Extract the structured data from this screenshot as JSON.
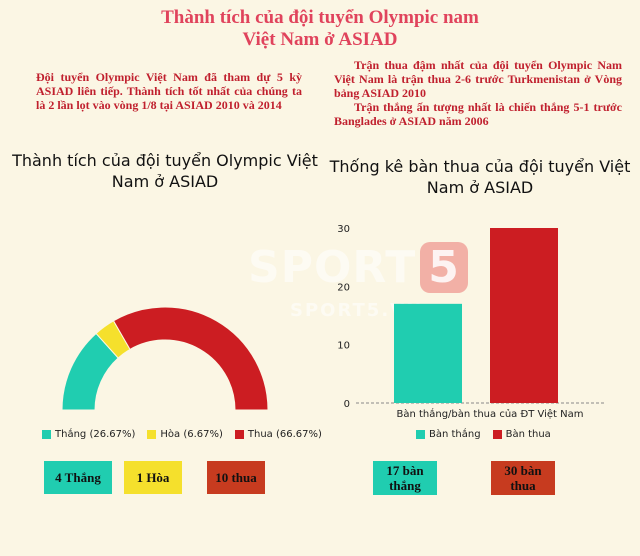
{
  "header": {
    "title_line1": "Thành tích của đội tuyển Olympic nam",
    "title_line2": "Việt Nam ở ASIAD"
  },
  "notes": {
    "left": "Đội tuyển Olympic Việt Nam đã tham dự 5 kỳ ASIAD liên tiếp. Thành tích tốt nhất của chúng ta là 2 lần lọt vào vòng 1/8 tại ASIAD 2010 và 2014",
    "right_p1": "Trận thua đậm nhất của đội tuyển Olympic Nam Việt Nam là trận thua 2-6 trước Turkmenistan ở Vòng bảng ASIAD 2010",
    "right_p2": "Trận thắng ấn tượng nhất là chiến thắng 5-1 trước Banglades ở ASIAD năm 2006"
  },
  "colors": {
    "win": "#20cdb0",
    "draw": "#f5e02c",
    "loss": "#cc1d22",
    "box_loss": "#c73b1f",
    "title": "#e0435c"
  },
  "boxes": {
    "wins": "4 Thắng",
    "draws": "1 Hòa",
    "losses": "10 thua",
    "goals_for_l1": "17 bàn",
    "goals_for_l2": "thắng",
    "goals_against_l1": "30 bàn",
    "goals_against_l2": "thua"
  },
  "watermark": {
    "main": "SPORT",
    "num": "5",
    "sub": "SPORT5.VN"
  },
  "chart_data": [
    {
      "type": "pie",
      "variant": "half-donut",
      "title": "Thành tích của đội tuyển Olympic Việt Nam ở ASIAD",
      "slices": [
        {
          "label": "Thắng",
          "pct_label": "Thắng (26.67%)",
          "value": 26.67,
          "color": "#20cdb0"
        },
        {
          "label": "Hòa",
          "pct_label": "Hòa (6.67%)",
          "value": 6.67,
          "color": "#f5e02c"
        },
        {
          "label": "Thua",
          "pct_label": "Thua (66.67%)",
          "value": 66.67,
          "color": "#cc1d22"
        }
      ],
      "legend": "bottom"
    },
    {
      "type": "bar",
      "title": "Thống kê bàn thua của đội tuyển Việt Nam ở ASIAD",
      "xlabel": "Bàn thắng/bàn thua của ĐT Việt Nam",
      "categories": [
        "Bàn thắng/bàn thua của ĐT Việt Nam"
      ],
      "series": [
        {
          "name": "Bàn thắng",
          "values": [
            17
          ],
          "color": "#20cdb0"
        },
        {
          "name": "Bàn thua",
          "values": [
            30
          ],
          "color": "#cc1d22"
        }
      ],
      "ylim": [
        0,
        30
      ],
      "yticks": [
        "0",
        "10",
        "20",
        "30"
      ],
      "legend": "bottom"
    }
  ]
}
